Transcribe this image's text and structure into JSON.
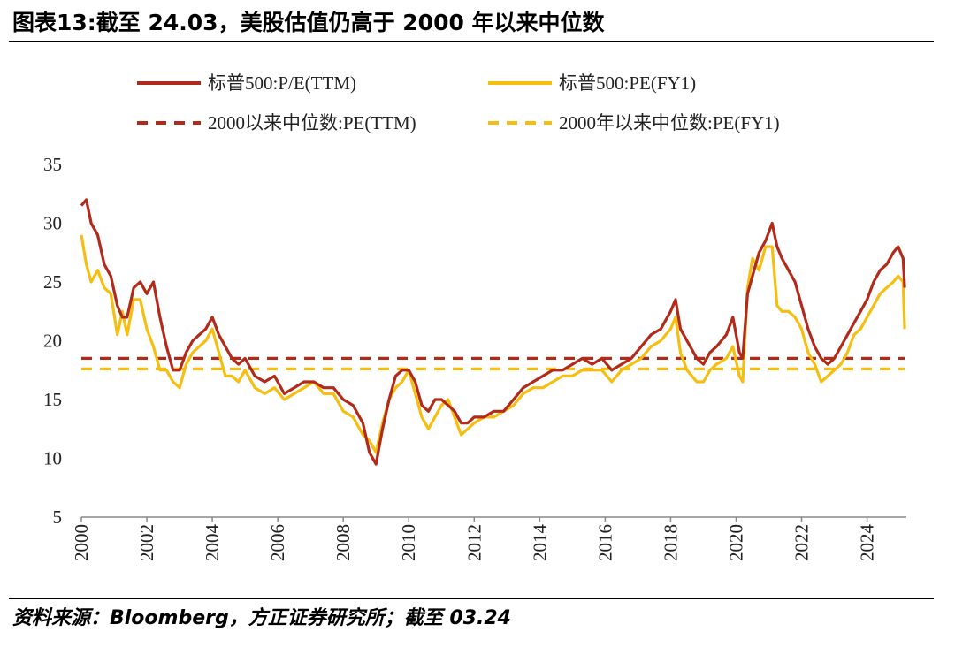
{
  "header": {
    "title": "图表13:截至 24.03，美股估值仍高于 2000 年以来中位数"
  },
  "footer": {
    "source": "资料来源：Bloomberg，方正证券研究所；截至 03.24"
  },
  "chart_data": {
    "type": "line",
    "title": "图表13:截至 24.03，美股估值仍高于 2000 年以来中位数",
    "xlabel": "",
    "ylabel": "",
    "xlim": [
      2000,
      2025.2
    ],
    "ylim": [
      5,
      35
    ],
    "yticks": [
      5,
      10,
      15,
      20,
      25,
      30,
      35
    ],
    "xticks": [
      "2000",
      "2002",
      "2004",
      "2006",
      "2008",
      "2010",
      "2012",
      "2014",
      "2016",
      "2018",
      "2020",
      "2022",
      "2024"
    ],
    "legend_position": "top",
    "series": [
      {
        "name": "标普500:P/E(TTM)",
        "color": "#b22a1a",
        "style": "solid",
        "x": [
          2000.0,
          2000.15,
          2000.3,
          2000.5,
          2000.7,
          2000.9,
          2001.1,
          2001.25,
          2001.4,
          2001.6,
          2001.8,
          2002.0,
          2002.2,
          2002.4,
          2002.6,
          2002.8,
          2003.0,
          2003.2,
          2003.4,
          2003.6,
          2003.8,
          2004.0,
          2004.2,
          2004.4,
          2004.6,
          2004.8,
          2005.0,
          2005.3,
          2005.6,
          2005.9,
          2006.2,
          2006.5,
          2006.8,
          2007.1,
          2007.4,
          2007.7,
          2008.0,
          2008.3,
          2008.6,
          2008.8,
          2009.0,
          2009.2,
          2009.4,
          2009.6,
          2009.8,
          2010.0,
          2010.2,
          2010.4,
          2010.6,
          2010.8,
          2011.0,
          2011.2,
          2011.4,
          2011.6,
          2011.8,
          2012.0,
          2012.3,
          2012.6,
          2012.9,
          2013.2,
          2013.5,
          2013.8,
          2014.1,
          2014.4,
          2014.7,
          2015.0,
          2015.3,
          2015.6,
          2015.9,
          2016.2,
          2016.5,
          2016.8,
          2017.1,
          2017.4,
          2017.7,
          2018.0,
          2018.15,
          2018.3,
          2018.5,
          2018.8,
          2019.0,
          2019.2,
          2019.4,
          2019.7,
          2019.9,
          2020.1,
          2020.2,
          2020.35,
          2020.5,
          2020.7,
          2020.9,
          2021.1,
          2021.25,
          2021.4,
          2021.6,
          2021.8,
          2022.0,
          2022.2,
          2022.4,
          2022.6,
          2022.8,
          2023.0,
          2023.2,
          2023.4,
          2023.6,
          2023.8,
          2024.0,
          2024.2,
          2024.4,
          2024.6,
          2024.8,
          2024.95,
          2025.1,
          2025.15
        ],
        "values": [
          31.5,
          32.0,
          30.0,
          29.0,
          26.5,
          25.5,
          23.0,
          22.0,
          22.0,
          24.5,
          25.0,
          24.0,
          25.0,
          22.0,
          19.5,
          17.5,
          17.5,
          19.0,
          20.0,
          20.5,
          21.0,
          22.0,
          20.5,
          19.5,
          18.5,
          18.0,
          18.5,
          17.0,
          16.5,
          17.0,
          15.5,
          16.0,
          16.5,
          16.5,
          16.0,
          16.0,
          15.0,
          14.5,
          13.0,
          10.5,
          9.5,
          12.5,
          15.0,
          17.0,
          17.5,
          17.5,
          16.5,
          14.5,
          14.0,
          15.0,
          15.0,
          14.5,
          14.0,
          13.0,
          13.0,
          13.5,
          13.5,
          14.0,
          14.0,
          15.0,
          16.0,
          16.5,
          17.0,
          17.5,
          17.5,
          18.0,
          18.5,
          18.0,
          18.5,
          17.5,
          18.0,
          18.5,
          19.5,
          20.5,
          21.0,
          22.5,
          23.5,
          21.0,
          20.0,
          18.5,
          18.0,
          19.0,
          19.5,
          20.5,
          22.0,
          19.0,
          18.5,
          24.0,
          25.5,
          27.5,
          28.5,
          30.0,
          28.0,
          27.0,
          26.0,
          25.0,
          23.0,
          21.0,
          19.5,
          18.5,
          18.0,
          18.5,
          19.5,
          20.5,
          21.5,
          22.5,
          23.5,
          25.0,
          26.0,
          26.5,
          27.5,
          28.0,
          27.0,
          24.5
        ]
      },
      {
        "name": "标普500:PE(FY1)",
        "color": "#f5be10",
        "style": "solid",
        "x": [
          2000.0,
          2000.15,
          2000.3,
          2000.5,
          2000.7,
          2000.9,
          2001.1,
          2001.25,
          2001.4,
          2001.6,
          2001.8,
          2002.0,
          2002.2,
          2002.4,
          2002.6,
          2002.8,
          2003.0,
          2003.2,
          2003.4,
          2003.6,
          2003.8,
          2004.0,
          2004.2,
          2004.4,
          2004.6,
          2004.8,
          2005.0,
          2005.3,
          2005.6,
          2005.9,
          2006.2,
          2006.5,
          2006.8,
          2007.1,
          2007.4,
          2007.7,
          2008.0,
          2008.3,
          2008.6,
          2008.8,
          2009.0,
          2009.2,
          2009.4,
          2009.6,
          2009.8,
          2010.0,
          2010.2,
          2010.4,
          2010.6,
          2010.8,
          2011.0,
          2011.2,
          2011.4,
          2011.6,
          2011.8,
          2012.0,
          2012.3,
          2012.6,
          2012.9,
          2013.2,
          2013.5,
          2013.8,
          2014.1,
          2014.4,
          2014.7,
          2015.0,
          2015.3,
          2015.6,
          2015.9,
          2016.2,
          2016.5,
          2016.8,
          2017.1,
          2017.4,
          2017.7,
          2018.0,
          2018.15,
          2018.3,
          2018.5,
          2018.8,
          2019.0,
          2019.2,
          2019.4,
          2019.7,
          2019.9,
          2020.1,
          2020.2,
          2020.35,
          2020.5,
          2020.7,
          2020.9,
          2021.1,
          2021.25,
          2021.4,
          2021.6,
          2021.8,
          2022.0,
          2022.2,
          2022.4,
          2022.6,
          2022.8,
          2023.0,
          2023.2,
          2023.4,
          2023.6,
          2023.8,
          2024.0,
          2024.2,
          2024.4,
          2024.6,
          2024.8,
          2024.95,
          2025.1,
          2025.15
        ],
        "values": [
          29.0,
          26.5,
          25.0,
          26.0,
          24.5,
          24.0,
          20.5,
          22.5,
          20.5,
          23.5,
          23.5,
          21.0,
          19.5,
          17.5,
          17.5,
          16.5,
          16.0,
          18.0,
          19.0,
          19.5,
          20.0,
          21.0,
          19.0,
          17.0,
          17.0,
          16.5,
          17.5,
          16.0,
          15.5,
          16.0,
          15.0,
          15.5,
          16.0,
          16.5,
          15.5,
          15.5,
          14.0,
          13.5,
          12.0,
          11.5,
          10.5,
          13.0,
          15.0,
          16.0,
          16.5,
          17.5,
          15.5,
          13.5,
          12.5,
          13.5,
          14.5,
          15.0,
          13.5,
          12.0,
          12.5,
          13.0,
          13.5,
          13.5,
          14.0,
          14.5,
          15.5,
          16.0,
          16.0,
          16.5,
          17.0,
          17.0,
          17.5,
          17.5,
          17.5,
          16.5,
          17.5,
          18.0,
          18.5,
          19.5,
          20.0,
          21.0,
          22.0,
          19.0,
          17.5,
          16.5,
          16.5,
          17.5,
          18.0,
          18.5,
          19.5,
          17.0,
          16.5,
          24.5,
          27.0,
          26.0,
          28.0,
          28.0,
          23.0,
          22.5,
          22.5,
          22.0,
          21.0,
          19.0,
          18.0,
          16.5,
          17.0,
          17.5,
          18.0,
          19.0,
          20.5,
          21.0,
          22.0,
          23.0,
          24.0,
          24.5,
          25.0,
          25.5,
          25.0,
          21.0
        ]
      },
      {
        "name": "2000以来中位数:PE(TTM)",
        "color": "#b22a1a",
        "style": "dashed",
        "x": [
          2000.0,
          2025.15
        ],
        "values": [
          18.5,
          18.5
        ]
      },
      {
        "name": "2000年以来中位数:PE(FY1)",
        "color": "#f5be10",
        "style": "dashed",
        "x": [
          2000.0,
          2025.15
        ],
        "values": [
          17.6,
          17.6
        ]
      }
    ]
  }
}
